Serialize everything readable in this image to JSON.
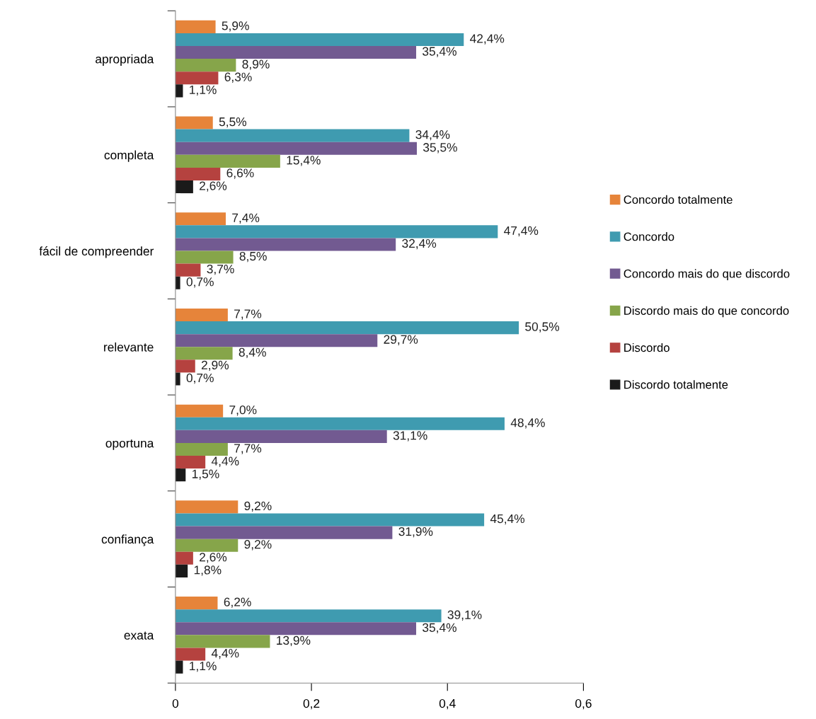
{
  "chart_data": {
    "type": "bar",
    "orientation": "horizontal",
    "categories": [
      "apropriada",
      "completa",
      "fácil de compreender",
      "relevante",
      "oportuna",
      "confiança",
      "exata"
    ],
    "series": [
      {
        "name": "Concordo totalmente",
        "color": "#e6843a",
        "values": [
          0.059,
          0.055,
          0.074,
          0.077,
          0.07,
          0.092,
          0.062
        ],
        "value_labels": [
          "5,9%",
          "5,5%",
          "7,4%",
          "7,7%",
          "7,0%",
          "9,2%",
          "6,2%"
        ]
      },
      {
        "name": "Concordo",
        "color": "#3f9bb0",
        "values": [
          0.424,
          0.344,
          0.474,
          0.505,
          0.484,
          0.454,
          0.391
        ],
        "value_labels": [
          "42,4%",
          "34,4%",
          "47,4%",
          "50,5%",
          "48,4%",
          "45,4%",
          "39,1%"
        ]
      },
      {
        "name": "Concordo mais do que discordo",
        "color": "#725a91",
        "values": [
          0.354,
          0.355,
          0.324,
          0.297,
          0.311,
          0.319,
          0.354
        ],
        "value_labels": [
          "35,4%",
          "35,5%",
          "32,4%",
          "29,7%",
          "31,1%",
          "31,9%",
          "35,4%"
        ]
      },
      {
        "name": "Discordo mais do que concordo",
        "color": "#86a54a",
        "values": [
          0.089,
          0.154,
          0.085,
          0.084,
          0.077,
          0.092,
          0.139
        ],
        "value_labels": [
          "8,9%",
          "15,4%",
          "8,5%",
          "8,4%",
          "7,7%",
          "9,2%",
          "13,9%"
        ]
      },
      {
        "name": "Discordo",
        "color": "#b5423f",
        "values": [
          0.063,
          0.066,
          0.037,
          0.029,
          0.044,
          0.026,
          0.044
        ],
        "value_labels": [
          "6,3%",
          "6,6%",
          "3,7%",
          "2,9%",
          "4,4%",
          "2,6%",
          "4,4%"
        ]
      },
      {
        "name": "Discordo totalmente",
        "color": "#1a1a1a",
        "values": [
          0.011,
          0.026,
          0.007,
          0.007,
          0.015,
          0.018,
          0.011
        ],
        "value_labels": [
          "1,1%",
          "2,6%",
          "0,7%",
          "0,7%",
          "1,5%",
          "1,8%",
          "1,1%"
        ]
      }
    ],
    "xlim": [
      0,
      0.6
    ],
    "xticks": [
      {
        "value": 0,
        "label": "0"
      },
      {
        "value": 0.2,
        "label": "0,2"
      },
      {
        "value": 0.4,
        "label": "0,4"
      },
      {
        "value": 0.6,
        "label": "0,6"
      }
    ],
    "legend": "right",
    "grid": false
  }
}
